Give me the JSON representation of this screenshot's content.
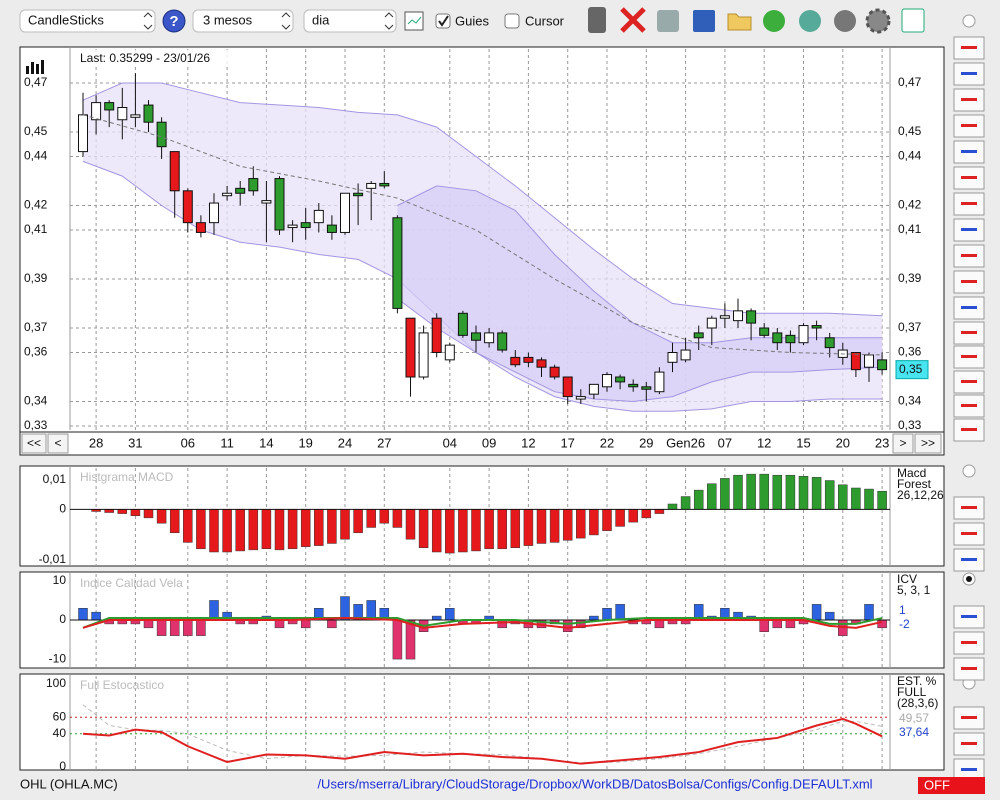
{
  "toolbar": {
    "chart_type": "CandleSticks",
    "help": "?",
    "period": "3 mesos",
    "interval": "dia",
    "guides": {
      "label": "Guies",
      "checked": true
    },
    "cursor": {
      "label": "Cursor",
      "checked": false
    }
  },
  "navigation": [
    "<<",
    "<",
    ">",
    ">>"
  ],
  "status": {
    "symbol": "OHL (OHLA.MC)",
    "path": "/Users/mserra/Library/CloudStorage/Dropbox/WorkDB/DatosBolsa/Configs/Config.DEFAULT.xml",
    "state": "OFF"
  },
  "chart_data": [
    {
      "type": "candlestick",
      "annotation": "Last: 0.35299 - 23/01/26",
      "last_label": "0,35",
      "categories": [
        null,
        "28",
        null,
        null,
        "31",
        null,
        null,
        null,
        "06",
        null,
        null,
        "11",
        null,
        null,
        "14",
        null,
        null,
        "19",
        null,
        null,
        "24",
        null,
        null,
        "27",
        null,
        null,
        null,
        null,
        "04",
        null,
        null,
        "09",
        null,
        null,
        "12",
        null,
        null,
        "17",
        null,
        null,
        "22",
        null,
        null,
        "29",
        null,
        null,
        "Gen26",
        null,
        null,
        "07",
        null,
        null,
        "12",
        null,
        null,
        "15",
        null,
        null,
        "20",
        null,
        null,
        "23"
      ],
      "open": [
        0.442,
        0.455,
        0.462,
        0.455,
        0.456,
        0.461,
        0.454,
        0.442,
        0.426,
        0.413,
        0.413,
        0.424,
        0.427,
        0.431,
        0.421,
        0.431,
        0.411,
        0.413,
        0.413,
        0.412,
        0.409,
        0.425,
        0.427,
        0.429,
        0.415,
        0.374,
        0.35,
        0.374,
        0.357,
        0.376,
        0.368,
        0.364,
        0.368,
        0.358,
        0.358,
        0.357,
        0.354,
        0.35,
        0.341,
        0.343,
        0.346,
        0.35,
        0.347,
        0.346,
        0.344,
        0.356,
        0.357,
        0.368,
        0.37,
        0.374,
        0.373,
        0.377,
        0.37,
        0.368,
        0.367,
        0.364,
        0.371,
        0.366,
        0.358,
        0.36,
        0.354,
        0.357
      ],
      "high": [
        0.466,
        0.465,
        0.463,
        0.468,
        0.474,
        0.463,
        0.456,
        0.442,
        0.427,
        0.416,
        0.425,
        0.428,
        0.43,
        0.436,
        0.43,
        0.432,
        0.414,
        0.419,
        0.421,
        0.416,
        0.425,
        0.429,
        0.43,
        0.434,
        0.416,
        0.374,
        0.371,
        0.376,
        0.364,
        0.377,
        0.371,
        0.37,
        0.369,
        0.361,
        0.36,
        0.358,
        0.355,
        0.35,
        0.345,
        0.347,
        0.352,
        0.351,
        0.349,
        0.348,
        0.354,
        0.364,
        0.366,
        0.371,
        0.375,
        0.38,
        0.382,
        0.378,
        0.372,
        0.37,
        0.369,
        0.372,
        0.373,
        0.368,
        0.364,
        0.36,
        0.36,
        0.36
      ],
      "low": [
        0.44,
        0.449,
        0.452,
        0.447,
        0.452,
        0.45,
        0.439,
        0.415,
        0.409,
        0.407,
        0.408,
        0.422,
        0.42,
        0.424,
        0.405,
        0.408,
        0.405,
        0.406,
        0.409,
        0.406,
        0.408,
        0.412,
        0.414,
        0.427,
        0.376,
        0.342,
        0.349,
        0.358,
        0.356,
        0.366,
        0.36,
        0.362,
        0.36,
        0.354,
        0.354,
        0.35,
        0.349,
        0.339,
        0.339,
        0.341,
        0.344,
        0.345,
        0.344,
        0.34,
        0.343,
        0.352,
        0.356,
        0.361,
        0.363,
        0.37,
        0.37,
        0.365,
        0.366,
        0.361,
        0.36,
        0.363,
        0.365,
        0.358,
        0.355,
        0.35,
        0.348,
        0.351
      ],
      "close": [
        0.457,
        0.462,
        0.459,
        0.46,
        0.457,
        0.454,
        0.444,
        0.426,
        0.413,
        0.409,
        0.421,
        0.425,
        0.425,
        0.426,
        0.422,
        0.41,
        0.412,
        0.411,
        0.418,
        0.409,
        0.425,
        0.424,
        0.429,
        0.428,
        0.378,
        0.35,
        0.368,
        0.36,
        0.363,
        0.367,
        0.365,
        0.368,
        0.361,
        0.355,
        0.356,
        0.354,
        0.35,
        0.342,
        0.342,
        0.347,
        0.351,
        0.348,
        0.346,
        0.345,
        0.352,
        0.36,
        0.361,
        0.366,
        0.374,
        0.375,
        0.377,
        0.372,
        0.367,
        0.364,
        0.364,
        0.371,
        0.37,
        0.362,
        0.361,
        0.353,
        0.359,
        0.353
      ],
      "candle_colors": [
        "#ffffff",
        "#ffffff",
        "#2e9b2e",
        "#ffffff",
        "#ffffff",
        "#2e9b2e",
        "#2e9b2e",
        "#e5191b",
        "#e5191b",
        "#e5191b",
        "#ffffff",
        "#ffffff",
        "#2e9b2e",
        "#2e9b2e",
        "#ffffff",
        "#2e9b2e",
        "#ffffff",
        "#2e9b2e",
        "#ffffff",
        "#2e9b2e",
        "#ffffff",
        "#2e9b2e",
        "#ffffff",
        "#2e9b2e",
        "#2e9b2e",
        "#e5191b",
        "#ffffff",
        "#e5191b",
        "#ffffff",
        "#2e9b2e",
        "#2e9b2e",
        "#ffffff",
        "#2e9b2e",
        "#e5191b",
        "#e5191b",
        "#e5191b",
        "#e5191b",
        "#e5191b",
        "#ffffff",
        "#ffffff",
        "#ffffff",
        "#2e9b2e",
        "#2e9b2e",
        "#2e9b2e",
        "#ffffff",
        "#ffffff",
        "#ffffff",
        "#2e9b2e",
        "#ffffff",
        "#ffffff",
        "#ffffff",
        "#2e9b2e",
        "#2e9b2e",
        "#2e9b2e",
        "#2e9b2e",
        "#ffffff",
        "#2e9b2e",
        "#2e9b2e",
        "#ffffff",
        "#e5191b",
        "#ffffff",
        "#2e9b2e"
      ],
      "bands": [
        {
          "fill": "#e8e2f8",
          "color": "#a395e2",
          "x": [
            0,
            3,
            6,
            9,
            12,
            15,
            18,
            21,
            24,
            27,
            30,
            33,
            36,
            39,
            42,
            45,
            48,
            51,
            54,
            57,
            61
          ],
          "upper": [
            0.463,
            0.47,
            0.47,
            0.466,
            0.462,
            0.461,
            0.46,
            0.458,
            0.457,
            0.452,
            0.44,
            0.428,
            0.415,
            0.402,
            0.39,
            0.38,
            0.378,
            0.376,
            0.376,
            0.376,
            0.375
          ],
          "lower": [
            0.438,
            0.432,
            0.42,
            0.41,
            0.405,
            0.403,
            0.4,
            0.398,
            0.39,
            0.375,
            0.36,
            0.35,
            0.342,
            0.338,
            0.336,
            0.336,
            0.337,
            0.34,
            0.34,
            0.341,
            0.341
          ]
        },
        {
          "fill": "#d7cef5",
          "color": "#a395e2",
          "x": [
            24,
            27,
            30,
            33,
            36,
            39,
            42,
            45,
            48,
            51,
            54,
            57,
            61
          ],
          "upper": [
            0.42,
            0.428,
            0.426,
            0.418,
            0.4,
            0.385,
            0.372,
            0.364,
            0.364,
            0.366,
            0.366,
            0.366,
            0.366
          ],
          "lower": [
            0.382,
            0.37,
            0.36,
            0.352,
            0.344,
            0.341,
            0.34,
            0.342,
            0.348,
            0.352,
            0.352,
            0.353,
            0.354
          ]
        }
      ],
      "lines": [
        {
          "color": "#777777",
          "dashed": true,
          "x": [
            0,
            6,
            12,
            18,
            24,
            30,
            36,
            42,
            48,
            54,
            61
          ],
          "values": [
            0.457,
            0.448,
            0.436,
            0.43,
            0.423,
            0.41,
            0.39,
            0.372,
            0.362,
            0.36,
            0.359
          ]
        }
      ],
      "ylim": [
        0.33,
        0.47
      ],
      "yticks": [
        {
          "value": 0.47,
          "label": "0,47"
        },
        {
          "value": 0.45,
          "label": "0,45"
        },
        {
          "value": 0.44,
          "label": "0,44"
        },
        {
          "value": 0.42,
          "label": "0,42"
        },
        {
          "value": 0.41,
          "label": "0,41"
        },
        {
          "value": 0.39,
          "label": "0,39"
        },
        {
          "value": 0.37,
          "label": "0,37"
        },
        {
          "value": 0.36,
          "label": "0,36"
        },
        {
          "value": 0.34,
          "label": "0,34"
        },
        {
          "value": 0.33,
          "label": "0,33"
        }
      ],
      "grid": true
    },
    {
      "type": "bar",
      "title": "Histgrama MACD",
      "legend": [
        "Macd",
        "Forest",
        "26,12,26"
      ],
      "series": [
        {
          "color": "#2e9b2e",
          "negative_color": "#e5191b",
          "values": [
            0,
            -0.0004,
            -0.0006,
            -0.0008,
            -0.0012,
            -0.0016,
            -0.0026,
            -0.0044,
            -0.0062,
            -0.0074,
            -0.008,
            -0.008,
            -0.0078,
            -0.0076,
            -0.0074,
            -0.0076,
            -0.0074,
            -0.007,
            -0.0068,
            -0.0064,
            -0.0056,
            -0.0044,
            -0.0034,
            -0.0026,
            -0.0034,
            -0.0056,
            -0.0072,
            -0.008,
            -0.0082,
            -0.008,
            -0.0078,
            -0.0074,
            -0.0074,
            -0.0072,
            -0.0068,
            -0.0064,
            -0.0062,
            -0.0058,
            -0.0054,
            -0.0048,
            -0.004,
            -0.0032,
            -0.0024,
            -0.0016,
            -0.0008,
            0.001,
            0.0024,
            0.0036,
            0.0048,
            0.0058,
            0.0064,
            0.0066,
            0.0066,
            0.0064,
            0.0064,
            0.0062,
            0.006,
            0.0054,
            0.0046,
            0.004,
            0.0038,
            0.0034
          ]
        }
      ],
      "ylim": [
        -0.0095,
        0.007
      ],
      "yticks": [
        {
          "value": 0.0055,
          "label": "0,01"
        },
        0,
        {
          "value": -0.0095,
          "label": "-0,01"
        }
      ]
    },
    {
      "type": "bar",
      "title": "Indice Calidad Vela",
      "legend": [
        "ICV",
        "5, 3, 1"
      ],
      "readouts": [
        {
          "text": "1",
          "color": "#2244cc"
        },
        {
          "text": "-2",
          "color": "#2244cc"
        }
      ],
      "series": [
        {
          "color": "#2d62e0",
          "negative_color": "#e0336e",
          "values": [
            3,
            2,
            -1,
            -1,
            -1,
            -2,
            -4,
            -4,
            -4,
            -4,
            5,
            2,
            -1,
            -1,
            1,
            -2,
            -1,
            -2,
            3,
            -2,
            6,
            4,
            5,
            3,
            -10,
            -10,
            -3,
            1,
            3,
            -1,
            -1,
            1,
            -2,
            -1,
            -2,
            -2,
            -1,
            -3,
            -2,
            1,
            3,
            4,
            -1,
            -1,
            -2,
            -1,
            -1,
            4,
            1,
            3,
            2,
            1,
            -3,
            -2,
            -2,
            -1,
            4,
            2,
            -4,
            -1,
            4,
            -2
          ]
        }
      ],
      "lines": [
        {
          "color": "#2e9b2e",
          "x": [
            0,
            2,
            5,
            8,
            12,
            16,
            20,
            24,
            26,
            29,
            33,
            37,
            40,
            43,
            47,
            51,
            55,
            57,
            59,
            61
          ],
          "values": [
            -2,
            0.5,
            0.5,
            0.5,
            0.5,
            0.5,
            0.5,
            0.5,
            -1.5,
            0,
            0,
            -1,
            0,
            0.5,
            0.5,
            0.5,
            0.5,
            -1,
            -1,
            0.5
          ]
        },
        {
          "color": "#e02020",
          "x": [
            0,
            2,
            5,
            8,
            12,
            16,
            20,
            24,
            26,
            29,
            33,
            37,
            40,
            43,
            47,
            51,
            55,
            57,
            59,
            61
          ],
          "values": [
            -2,
            0,
            0,
            0,
            0,
            0,
            0.5,
            0,
            -2,
            -1,
            -0.5,
            -2,
            -1,
            0,
            0,
            0,
            0,
            -1.5,
            -2,
            -0.5
          ]
        }
      ],
      "ylim": [
        -11,
        11
      ],
      "yticks": [
        10,
        0,
        -10
      ]
    },
    {
      "type": "line",
      "title": "Full Estocastico",
      "legend": [
        "EST. %",
        "FULL",
        "(28,3,6)"
      ],
      "readouts": [
        {
          "text": "49,57",
          "color": "#aaaaaa"
        },
        {
          "text": "37,64",
          "color": "#2244cc"
        }
      ],
      "lines": [
        {
          "color": "#bbbbbb",
          "dashed": true,
          "x": [
            0,
            2,
            4,
            6,
            8,
            11,
            14,
            17,
            20,
            23,
            26,
            29,
            32,
            35,
            38,
            41,
            44,
            47,
            50,
            53,
            56,
            58,
            59,
            61
          ],
          "values": [
            75,
            50,
            45,
            44,
            40,
            20,
            10,
            14,
            13,
            14,
            18,
            16,
            15,
            10,
            5,
            6,
            10,
            16,
            25,
            35,
            45,
            55,
            55,
            49
          ]
        },
        {
          "color": "#e02020",
          "x": [
            0,
            2,
            4,
            6,
            8,
            11,
            14,
            17,
            20,
            23,
            26,
            29,
            32,
            35,
            38,
            41,
            44,
            47,
            50,
            53,
            56,
            58,
            59,
            61
          ],
          "values": [
            40,
            38,
            45,
            42,
            25,
            6,
            15,
            14,
            10,
            18,
            14,
            16,
            12,
            10,
            4,
            8,
            12,
            18,
            30,
            35,
            50,
            58,
            52,
            37
          ]
        }
      ],
      "reference_lines": [
        {
          "value": 60,
          "color": "#c02020"
        },
        {
          "value": 40,
          "color": "#2e9b2e"
        }
      ],
      "ylim": [
        0,
        100
      ],
      "yticks": [
        100,
        60,
        40,
        0
      ]
    }
  ]
}
